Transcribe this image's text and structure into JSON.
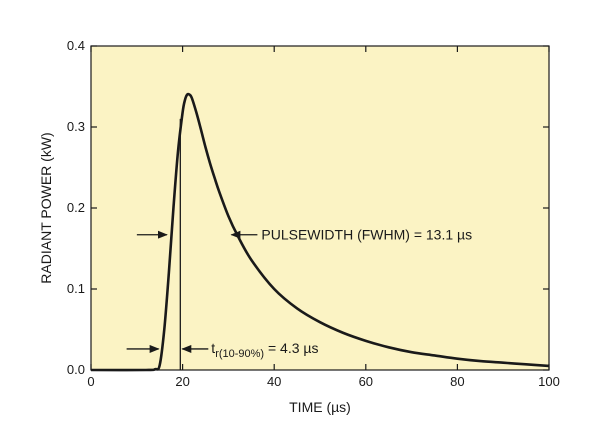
{
  "colors": {
    "plot_background": "#fbf3c4",
    "curve": "#1a1a1a",
    "axis": "#1a1a1a"
  },
  "chart_data": {
    "type": "line",
    "title": "",
    "xlabel": "TIME (µs)",
    "ylabel": "RADIANT POWER (kW)",
    "xlim": [
      0,
      100
    ],
    "ylim": [
      0,
      0.4
    ],
    "x_ticks": [
      0,
      20,
      40,
      60,
      80,
      100
    ],
    "x_tick_labels": [
      "0",
      "20",
      "40",
      "60",
      "80",
      "100"
    ],
    "y_ticks": [
      0.0,
      0.1,
      0.2,
      0.3,
      0.4
    ],
    "y_tick_labels": [
      "0.0",
      "0.1",
      "0.2",
      "0.3",
      "0.4"
    ],
    "grid": false,
    "legend": "none",
    "series": [
      {
        "points": [
          [
            0,
            0.0
          ],
          [
            12,
            0.0
          ],
          [
            14,
            0.001
          ],
          [
            15,
            0.006
          ],
          [
            16,
            0.05
          ],
          [
            17,
            0.12
          ],
          [
            18,
            0.2
          ],
          [
            19,
            0.27
          ],
          [
            20,
            0.318
          ],
          [
            20.5,
            0.333
          ],
          [
            21,
            0.34
          ],
          [
            21.5,
            0.34
          ],
          [
            22,
            0.336
          ],
          [
            23,
            0.318
          ],
          [
            24,
            0.297
          ],
          [
            25,
            0.275
          ],
          [
            26,
            0.255
          ],
          [
            27,
            0.237
          ],
          [
            28,
            0.22
          ],
          [
            30,
            0.19
          ],
          [
            32,
            0.166
          ],
          [
            35,
            0.136
          ],
          [
            40,
            0.1
          ],
          [
            45,
            0.076
          ],
          [
            50,
            0.059
          ],
          [
            55,
            0.046
          ],
          [
            60,
            0.036
          ],
          [
            65,
            0.028
          ],
          [
            70,
            0.022
          ],
          [
            75,
            0.018
          ],
          [
            80,
            0.014
          ],
          [
            85,
            0.011
          ],
          [
            90,
            0.009
          ],
          [
            95,
            0.007
          ],
          [
            100,
            0.005
          ]
        ]
      }
    ],
    "markers": {
      "rise_start_x": 15.2,
      "rise_end_x": 19.5,
      "fwhm_left_x": 17.0,
      "fwhm_right_x": 30.0,
      "fwhm_y": 0.167
    },
    "annotations": {
      "pulsewidth": {
        "text": "PULSEWIDTH (FWHM) = 13.1 µs",
        "arrow_y": 0.167
      },
      "risetime": {
        "prefix": "t",
        "subscript": "r(10-90%)",
        "suffix": " = 4.3 µs",
        "arrow_y": 0.026
      }
    }
  }
}
